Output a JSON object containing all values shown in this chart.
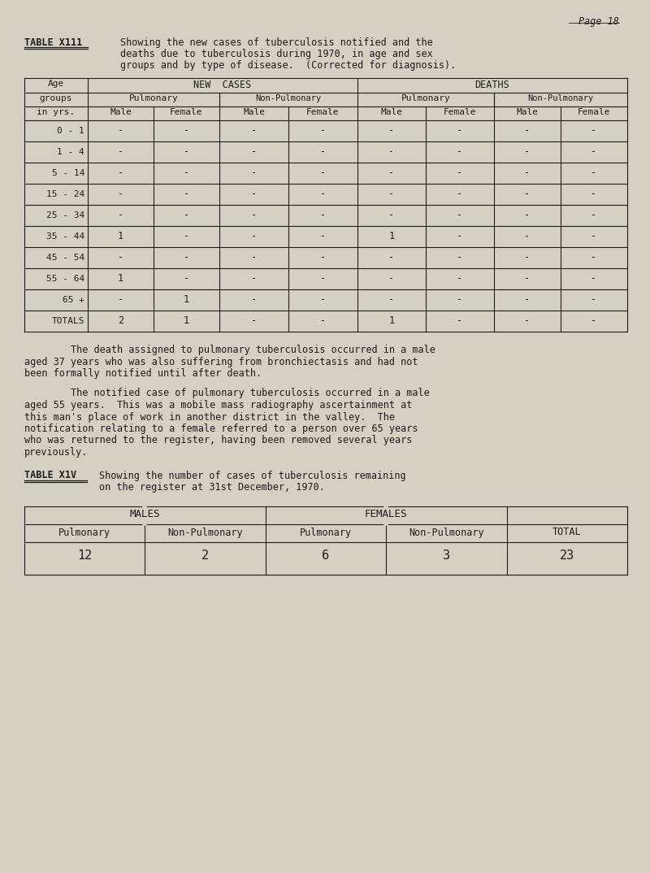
{
  "bg_color": "#d4d0c4",
  "text_color": "#1c1c1c",
  "page_label": "Page 18",
  "table1_title_label": "TABLE X111",
  "table1_title_line1": "Showing the new cases of tuberculosis notified and the",
  "table1_title_line2": "deaths due to tuberculosis during 1970, in age and sex",
  "table1_title_line3": "groups and by type of disease.  (Corrected for diagnosis).",
  "age_groups": [
    "0 - 1",
    "1 - 4",
    "5 - 14",
    "15 - 24",
    "25 - 34",
    "35 - 44",
    "45 - 54",
    "55 - 64",
    "65 +",
    "TOTALS"
  ],
  "table1_data": {
    "new_pulm_male": [
      "-",
      "-",
      "-",
      "-",
      "-",
      "1",
      "-",
      "1",
      "-",
      "2"
    ],
    "new_pulm_female": [
      "-",
      "-",
      "-",
      "-",
      "-",
      "-",
      "-",
      "-",
      "1",
      "1"
    ],
    "new_nonp_male": [
      "-",
      "-",
      "-",
      "-",
      "-",
      "-",
      "-",
      "-",
      "-",
      "-"
    ],
    "new_nonp_female": [
      "-",
      "-",
      "-",
      "-",
      "-",
      "-",
      "-",
      "-",
      "-",
      "-"
    ],
    "dth_pulm_male": [
      "-",
      "-",
      "-",
      "-",
      "-",
      "1",
      "-",
      "-",
      "-",
      "1"
    ],
    "dth_pulm_female": [
      "-",
      "-",
      "-",
      "-",
      "-",
      "-",
      "-",
      "-",
      "-",
      "-"
    ],
    "dth_nonp_male": [
      "-",
      "-",
      "-",
      "-",
      "-",
      "-",
      "-",
      "-",
      "-",
      "-"
    ],
    "dth_nonp_female": [
      "-",
      "-",
      "-",
      "-",
      "-",
      "-",
      "-",
      "-",
      "-",
      "-"
    ]
  },
  "para1_line1": "        The death assigned to pulmonary tuberculosis occurred in a male",
  "para1_line2": "aged 37 years who was also suffering from bronchiectasis and had not",
  "para1_line3": "been formally notified until after death.",
  "para2_line1": "        The notified case of pulmonary tuberculosis occurred in a male",
  "para2_line2": "aged 55 years.  This was a mobile mass radiography ascertainment at",
  "para2_line3": "this man's place of work in another district in the valley.  The",
  "para2_line4": "notification relating to a female referred to a person over 65 years",
  "para2_line5": "who was returned to the register, having been removed several years",
  "para2_line6": "previously.",
  "table2_title_label": "TABLE X1V",
  "table2_title_line1": "Showing the number of cases of tuberculosis remaining",
  "table2_title_line2": "on the register at 31st December, 1970.",
  "table2_header_row2": [
    "Pulmonary",
    "Non-Pulmonary",
    "Pulmonary",
    "Non-Pulmonary",
    "TOTAL"
  ],
  "table2_data": [
    "12",
    "2",
    "6",
    "3",
    "23"
  ],
  "font_family": "DejaVu Sans Mono"
}
